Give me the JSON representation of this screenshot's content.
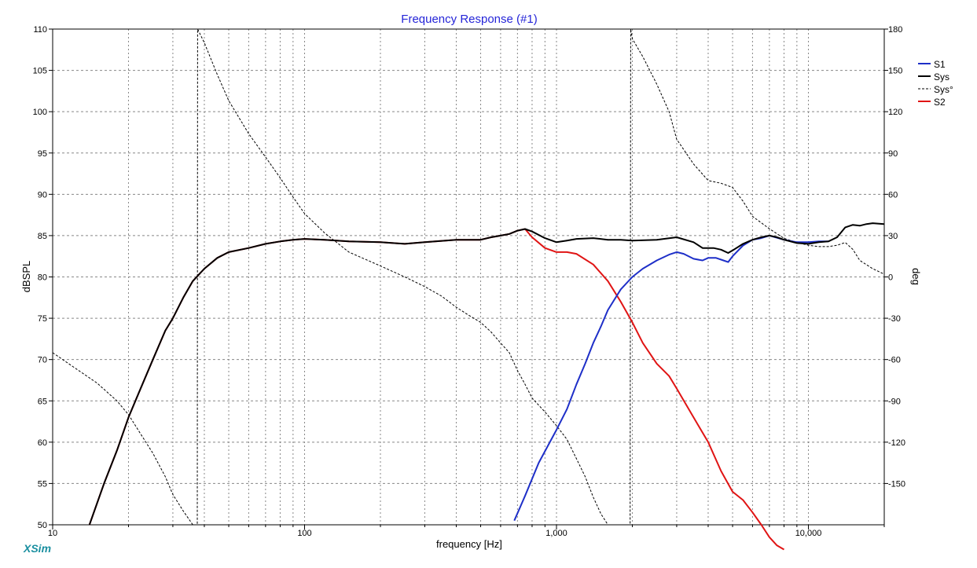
{
  "chart_data": {
    "type": "line",
    "title": "Frequency Response (#1)",
    "xlabel": "frequency [Hz]",
    "ylabel": "dBSPL",
    "y2label": "deg",
    "x_scale": "log",
    "xlim": [
      10,
      20000
    ],
    "ylim": [
      50,
      110
    ],
    "y2lim": [
      -180,
      180
    ],
    "x_tick_labels": [
      {
        "value": 10,
        "label": "10"
      },
      {
        "value": 100,
        "label": "100"
      },
      {
        "value": 1000,
        "label": "1,000"
      },
      {
        "value": 10000,
        "label": "10,000"
      }
    ],
    "y_ticks": [
      110,
      105,
      100,
      95,
      90,
      85,
      80,
      75,
      70,
      65,
      60,
      55,
      50
    ],
    "y2_ticks": [
      180,
      150,
      120,
      90,
      60,
      30,
      0,
      -30,
      -60,
      -90,
      -120,
      -150
    ],
    "grid": true,
    "legend_position": "right",
    "series": [
      {
        "name": "S1",
        "axis": "left",
        "color": "#1e2fc8",
        "dashed": false,
        "width": 2,
        "x": [
          680,
          750,
          850,
          1000,
          1100,
          1200,
          1300,
          1400,
          1500,
          1600,
          1800,
          2000,
          2200,
          2500,
          2800,
          3000,
          3200,
          3500,
          3800,
          4000,
          4300,
          4600,
          4800,
          5000,
          5500,
          6000,
          6500,
          7000,
          8000,
          9000,
          10000,
          11000,
          12000
        ],
        "y": [
          50.5,
          53.5,
          57.5,
          61.5,
          64,
          67,
          69.5,
          72,
          74,
          76,
          78.5,
          80,
          81,
          82,
          82.7,
          83,
          82.8,
          82.2,
          82,
          82.3,
          82.3,
          82,
          81.8,
          82.5,
          83.8,
          84.5,
          84.7,
          85,
          84.5,
          84.2,
          84.2,
          84.3,
          84.3
        ]
      },
      {
        "name": "Sys",
        "axis": "left",
        "color": "#000000",
        "dashed": false,
        "width": 2,
        "x": [
          14,
          16,
          18,
          20,
          22,
          25,
          28,
          30,
          33,
          36,
          40,
          45,
          50,
          60,
          70,
          80,
          90,
          100,
          120,
          150,
          200,
          250,
          300,
          400,
          500,
          550,
          600,
          650,
          700,
          750,
          800,
          900,
          1000,
          1100,
          1200,
          1400,
          1600,
          1800,
          2000,
          2500,
          3000,
          3500,
          3800,
          4200,
          4500,
          4800,
          5000,
          5500,
          6000,
          6500,
          7000,
          7500,
          8000,
          9000,
          10000,
          11000,
          12000,
          13000,
          14000,
          15000,
          16000,
          17000,
          18000,
          20000
        ],
        "y": [
          50,
          55,
          59,
          63,
          66,
          70,
          73.5,
          75,
          77.5,
          79.5,
          81,
          82.3,
          83,
          83.5,
          84,
          84.3,
          84.5,
          84.6,
          84.5,
          84.3,
          84.2,
          84,
          84.2,
          84.5,
          84.5,
          84.8,
          85,
          85.2,
          85.6,
          85.8,
          85.5,
          84.7,
          84.2,
          84.4,
          84.6,
          84.7,
          84.5,
          84.5,
          84.4,
          84.5,
          84.8,
          84.2,
          83.5,
          83.5,
          83.3,
          82.9,
          83.2,
          84,
          84.5,
          84.8,
          85,
          84.8,
          84.5,
          84.1,
          84,
          84.2,
          84.3,
          84.8,
          86,
          86.3,
          86.2,
          86.4,
          86.5,
          86.4
        ]
      },
      {
        "name": "Sys°",
        "axis": "right",
        "color": "#000000",
        "dashed": true,
        "width": 1,
        "x": [
          10,
          12,
          15,
          18,
          20,
          22,
          25,
          28,
          30,
          33,
          36,
          37.5,
          37.6,
          40,
          45,
          50,
          60,
          70,
          80,
          90,
          100,
          120,
          150,
          200,
          250,
          300,
          350,
          400,
          450,
          500,
          550,
          600,
          650,
          700,
          750,
          800,
          900,
          1000,
          1100,
          1200,
          1300,
          1400,
          1500,
          1600,
          1700,
          1800,
          1900,
          1960,
          1970,
          2000,
          2200,
          2500,
          2800,
          3000,
          3500,
          4000,
          4500,
          5000,
          5500,
          6000,
          7000,
          8000,
          9000,
          10000,
          11000,
          12000,
          13000,
          14000,
          15000,
          16000,
          18000,
          20000
        ],
        "y": [
          -55,
          -65,
          -77,
          -90,
          -100,
          -112,
          -128,
          -145,
          -158,
          -170,
          -180,
          -180,
          180,
          170,
          147,
          128,
          104,
          87,
          72,
          58,
          46,
          32,
          18,
          8,
          0,
          -7,
          -14,
          -22,
          -28,
          -33,
          -40,
          -48,
          -55,
          -68,
          -78,
          -88,
          -98,
          -108,
          -118,
          -132,
          -145,
          -160,
          -172,
          -180,
          -180,
          -180,
          -180,
          -180,
          180,
          173,
          160,
          140,
          120,
          100,
          82,
          70,
          68,
          65,
          55,
          44,
          35,
          28,
          25,
          23,
          22,
          22,
          23,
          25,
          20,
          12,
          6,
          2
        ]
      },
      {
        "name": "S2",
        "axis": "left",
        "color": "#e01414",
        "dashed": false,
        "width": 2,
        "x": [
          14,
          16,
          18,
          20,
          22,
          25,
          28,
          30,
          33,
          36,
          40,
          45,
          50,
          60,
          70,
          80,
          90,
          100,
          120,
          150,
          200,
          250,
          300,
          400,
          500,
          550,
          600,
          650,
          700,
          750,
          800,
          900,
          1000,
          1100,
          1200,
          1400,
          1600,
          1800,
          2000,
          2200,
          2500,
          2800,
          3000,
          3500,
          4000,
          4500,
          5000,
          5500,
          6000,
          6500,
          7000,
          7500,
          8000
        ],
        "y": [
          50,
          55,
          59,
          63,
          66,
          70,
          73.5,
          75,
          77.5,
          79.5,
          81,
          82.3,
          83,
          83.5,
          84,
          84.3,
          84.5,
          84.6,
          84.5,
          84.3,
          84.2,
          84,
          84.2,
          84.5,
          84.5,
          84.8,
          85,
          85.2,
          85.6,
          85.8,
          84.8,
          83.5,
          83,
          83,
          82.8,
          81.5,
          79.5,
          77,
          74.5,
          72,
          69.5,
          68,
          66.5,
          63,
          60,
          56.5,
          54,
          53,
          51.5,
          50,
          48.5,
          47.5,
          47
        ]
      }
    ]
  },
  "brand": {
    "label": "XSim",
    "color": "#1a8fa0"
  }
}
